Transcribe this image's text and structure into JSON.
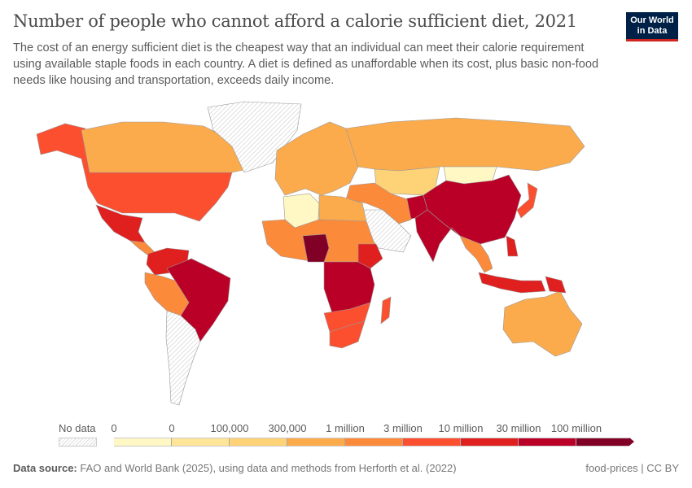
{
  "header": {
    "title": "Number of people who cannot afford a calorie sufficient diet, 2021",
    "subtitle": "The cost of an energy sufficient diet is the cheapest way that an individual can meet their calorie requirement using available staple foods in each country. A diet is defined as unaffordable when its cost, plus basic non-food needs like housing and transportation, exceeds daily income.",
    "logo": "Our World in Data"
  },
  "legend": {
    "no_data_label": "No data",
    "tick_labels": [
      "0",
      "0",
      "100,000",
      "300,000",
      "1 million",
      "3 million",
      "10 million",
      "30 million",
      "100 million"
    ],
    "bin_colors": [
      "#fff7c4",
      "#fee597",
      "#fed276",
      "#fcab4c",
      "#fc8a3b",
      "#fb4f2f",
      "#e01f1f",
      "#bb0027",
      "#800026"
    ],
    "no_data_color": "hatched-gray"
  },
  "chart_data": {
    "type": "choropleth",
    "title": "Number of people who cannot afford a calorie sufficient diet, 2021",
    "scale": "binned",
    "bins": [
      "0",
      "0",
      "100,000",
      "300,000",
      "1 million",
      "3 million",
      "10 million",
      "30 million",
      "100 million"
    ],
    "regions": {
      "Alaska/USA": 5,
      "Canada": 3,
      "Greenland": "no data",
      "Mexico": 6,
      "Central America": 4,
      "Colombia/Venezuela": 6,
      "Brazil": 7,
      "Peru/Bolivia": 4,
      "Argentina/Chile": "no data",
      "Europe": 3,
      "Russia": 3,
      "Kazakhstan": 2,
      "Mongolia": 0,
      "China": 7,
      "India": 7,
      "Pakistan": 7,
      "Middle East": "no data",
      "Iran/Turkey": 4,
      "Algeria": 0,
      "North Africa": 3,
      "Sahel": 4,
      "Nigeria": 8,
      "Central/East Africa": 7,
      "Ethiopia": 6,
      "Southern Africa": 5,
      "South Africa": 5,
      "Madagascar": 5,
      "Southeast Asia": 4,
      "Indonesia": 6,
      "Philippines": 6,
      "Japan": 5,
      "Australia": 3,
      "Papua New Guinea": 6
    }
  },
  "footer": {
    "source_label": "Data source:",
    "source_text": "FAO and World Bank (2025), using data and methods from Herforth et al. (2022)",
    "license": "food-prices | CC BY"
  }
}
